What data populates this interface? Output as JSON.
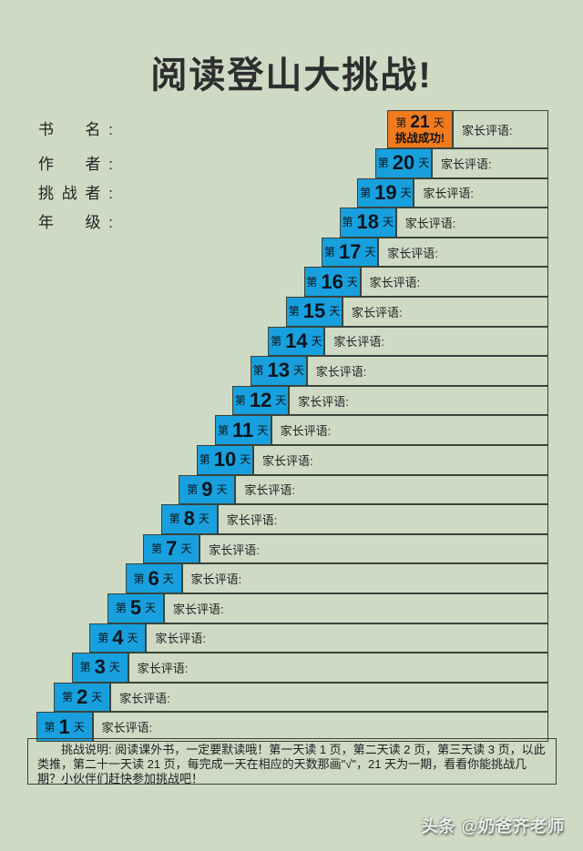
{
  "page": {
    "title": "阅读登山大挑战!",
    "watermark": "头条 @奶爸齐老师"
  },
  "info_fields": [
    {
      "label": "书　名:"
    },
    {
      "label": "作　者:"
    },
    {
      "label": "挑战者:"
    },
    {
      "label": "年　级:"
    }
  ],
  "staircase": {
    "day_prefix": "第",
    "day_suffix": "天",
    "comment_label": "家长评语:",
    "goal_caption": "挑战成功!"
  },
  "days": [
    {
      "num": "1"
    },
    {
      "num": "2"
    },
    {
      "num": "3"
    },
    {
      "num": "4"
    },
    {
      "num": "5"
    },
    {
      "num": "6"
    },
    {
      "num": "7"
    },
    {
      "num": "8"
    },
    {
      "num": "9"
    },
    {
      "num": "10"
    },
    {
      "num": "11"
    },
    {
      "num": "12"
    },
    {
      "num": "13"
    },
    {
      "num": "14"
    },
    {
      "num": "15"
    },
    {
      "num": "16"
    },
    {
      "num": "17"
    },
    {
      "num": "18"
    },
    {
      "num": "19"
    },
    {
      "num": "20"
    },
    {
      "num": "21",
      "goal": true
    }
  ],
  "instructions": {
    "text": "挑战说明: 阅读课外书，一定要默读哦！第一天读 1 页，第二天读 2 页，第三天读 3 页，以此类推，第二十一天读 21 页，每完成一天在相应的天数那画\"√\"，21 天为一期，看看你能挑战几期？小伙伴们赶快参加挑战吧！"
  },
  "colors": {
    "background": "#cfdac5",
    "day_box": "#18a0de",
    "goal_box": "#f17a1d",
    "border": "#3a433a"
  }
}
